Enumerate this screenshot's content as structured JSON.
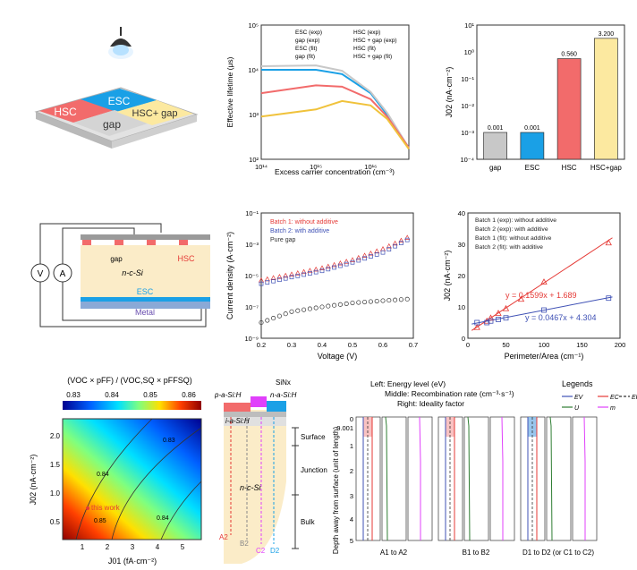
{
  "colors": {
    "esc": "#1aa0e6",
    "hsc": "#f26b6b",
    "gap": "#c8c8c8",
    "hscgap": "#fce9a0",
    "batch1": "#e53935",
    "batch2": "#3f51b5",
    "pure": "#333333"
  },
  "schematic_top": {
    "regions": [
      "HSC",
      "ESC",
      "gap",
      "HSC+ gap"
    ]
  },
  "chart_lifetime": {
    "type": "line",
    "xlabel": "Excess carrier concentration (cm⁻³)",
    "ylabel": "Effective lifetime (μs)",
    "x_ticks": [
      "10¹⁴",
      "10¹⁵",
      "10¹⁶"
    ],
    "y_ticks": [
      "10⁵",
      "10⁴",
      "10³",
      "10²"
    ],
    "xlim": [
      100000000000000.0,
      5e+16
    ],
    "ylim": [
      100,
      100000
    ],
    "scale": "log-log",
    "legend": [
      "ESC (exp)",
      "HSC (exp)",
      "gap (exp)",
      "HSC + gap (exp)",
      "ESC (fit)",
      "HSC (fit)",
      "gap (fit)",
      "HSC + gap (fit)"
    ],
    "series": [
      {
        "name": "ESC (fit)",
        "x": [
          100000000000000.0,
          1000000000000000.0,
          3000000000000000.0,
          1e+16,
          2e+16,
          5e+16
        ],
        "y": [
          10000,
          10000,
          8000,
          3000,
          1000,
          180
        ]
      },
      {
        "name": "gap (fit)",
        "x": [
          100000000000000.0,
          1000000000000000.0,
          3000000000000000.0,
          1e+16,
          2e+16,
          5e+16
        ],
        "y": [
          12000,
          12500,
          9500,
          3200,
          1100,
          180
        ]
      },
      {
        "name": "HSC (fit)",
        "x": [
          100000000000000.0,
          1000000000000000.0,
          3000000000000000.0,
          1e+16,
          2e+16,
          5e+16
        ],
        "y": [
          3000,
          4500,
          4200,
          2200,
          900,
          180
        ]
      },
      {
        "name": "HSC + gap (fit)",
        "x": [
          100000000000000.0,
          1000000000000000.0,
          3000000000000000.0,
          1e+16,
          2e+16,
          5e+16
        ],
        "y": [
          900,
          1300,
          2000,
          1600,
          800,
          170
        ]
      }
    ]
  },
  "chart_j02": {
    "type": "bar",
    "ylabel": "J02 (nA·cm⁻²)",
    "categories": [
      "gap",
      "ESC",
      "HSC",
      "HSC+gap"
    ],
    "values": [
      0.001,
      0.001,
      0.56,
      3.2
    ],
    "labels": [
      "0.001",
      "0.001",
      "0.560",
      "3.200"
    ],
    "y_ticks": [
      "10¹",
      "10⁰",
      "10⁻¹",
      "10⁻²",
      "10⁻³",
      "10⁻⁴"
    ],
    "ylim": [
      0.0001,
      10
    ],
    "scale": "log"
  },
  "device_schematic": {
    "labels": [
      "gap",
      "HSC",
      "n-c-Si",
      "ESC",
      "Metal"
    ],
    "meters": [
      "V",
      "A"
    ]
  },
  "chart_current": {
    "type": "scatter",
    "xlabel": "Voltage (V)",
    "ylabel": "Current density (A·cm⁻²)",
    "x_ticks": [
      "0.2",
      "0.3",
      "0.4",
      "0.5",
      "0.6",
      "0.7"
    ],
    "y_ticks": [
      "10⁻¹",
      "10⁻³",
      "10⁻⁵",
      "10⁻⁷",
      "10⁻⁹"
    ],
    "xlim": [
      0.2,
      0.7
    ],
    "ylim": [
      1e-09,
      0.1
    ],
    "scale": "log-y",
    "legend": [
      "Batch 1: without additive",
      "Batch 2: with additive",
      "Pure gap"
    ],
    "series": [
      {
        "name": "Batch 1: without additive",
        "x": [
          0.2,
          0.3,
          0.4,
          0.5,
          0.6,
          0.7
        ],
        "y": [
          5e-06,
          1.2e-05,
          3e-05,
          0.0001,
          0.0005,
          0.004
        ]
      },
      {
        "name": "Batch 2: with additive",
        "x": [
          0.2,
          0.3,
          0.4,
          0.5,
          0.6,
          0.7
        ],
        "y": [
          3e-06,
          8e-06,
          2e-05,
          7e-05,
          0.0003,
          0.003
        ]
      },
      {
        "name": "Pure gap",
        "x": [
          0.2,
          0.3,
          0.4,
          0.5,
          0.6,
          0.7
        ],
        "y": [
          1e-08,
          5e-08,
          1e-07,
          1.8e-07,
          2.5e-07,
          3.3e-07
        ]
      }
    ]
  },
  "chart_perimeter": {
    "type": "scatter",
    "xlabel": "Perimeter/Area (cm⁻¹)",
    "ylabel": "J02 (nA·cm⁻²)",
    "x_ticks": [
      "0",
      "50",
      "100",
      "150",
      "200"
    ],
    "y_ticks": [
      "0",
      "10",
      "20",
      "30",
      "40"
    ],
    "xlim": [
      0,
      200
    ],
    "ylim": [
      0,
      40
    ],
    "legend": [
      "Batch 1 (exp): without additive",
      "Batch 2 (exp): with additive",
      "Batch 1 (fit): without additive",
      "Batch 2 (fit): with additive"
    ],
    "eq1": "y = 0.1599x + 1.689",
    "eq2": "y = 0.0467x + 4.304",
    "series": [
      {
        "name": "Batch 1 (exp): without additive",
        "x": [
          12,
          25,
          30,
          40,
          50,
          70,
          100,
          185
        ],
        "y": [
          3.5,
          5.5,
          6.5,
          8,
          9.5,
          12.5,
          18,
          30.5
        ]
      },
      {
        "name": "Batch 2 (exp): with additive",
        "x": [
          12,
          25,
          30,
          40,
          50,
          100,
          185
        ],
        "y": [
          5,
          5,
          5.5,
          6,
          6.5,
          9,
          12.8
        ]
      }
    ]
  },
  "heatmap": {
    "type": "heatmap",
    "title": "(VOC × pFF) / (VOC,SQ × pFFSQ)",
    "colorbar_ticks": [
      "0.83",
      "0.84",
      "0.85",
      "0.86"
    ],
    "xlabel": "J01 (fA·cm⁻²)",
    "ylabel": "J02 (nA·cm⁻²)",
    "x_ticks": [
      "1",
      "2",
      "3",
      "4",
      "5"
    ],
    "y_ticks": [
      "0.5",
      "1.0",
      "1.5",
      "2.0"
    ],
    "contours": [
      "0.85",
      "0.84",
      "0.84",
      "0.83"
    ],
    "marker_label": "this work"
  },
  "cross_section": {
    "labels": [
      "SiNx",
      "p-a-Si:H",
      "n-a-Si:H",
      "i-a-Si:H",
      "n-c-Si",
      "Surface",
      "Junction",
      "Bulk"
    ],
    "points": [
      "A1",
      "A2",
      "B1",
      "B2",
      "C1",
      "C2",
      "D1",
      "D2"
    ]
  },
  "band_panel": {
    "left_title": "Left: Energy level (eV)",
    "mid_title": "Middle: Recombination rate (cm⁻³·s⁻¹)",
    "right_title": "Right: Ideality factor",
    "legend_title": "Legends",
    "legend_items": [
      "EV",
      "EC",
      "EF",
      "U",
      "m"
    ],
    "ylabel": "Depth away from surface (unit of length)",
    "y_ticks": [
      "0",
      "0.001",
      "1",
      "2",
      "3",
      "4",
      "5"
    ],
    "groups": [
      "A1 to A2",
      "B1 to B2",
      "D1 to D2 (or C1 to C2)"
    ]
  }
}
